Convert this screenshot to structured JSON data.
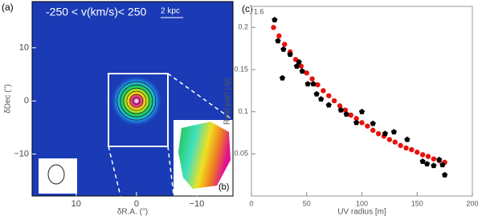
{
  "chart_data": [
    {
      "type": "image",
      "panel_label": "(a)",
      "annotations": [
        "-250 < v(km/s)< 250",
        "2 kpc",
        "(b)"
      ],
      "xlabel": "δR.A. ('')",
      "ylabel": "δDec ('')",
      "xlim": [
        17.3,
        -16
      ],
      "ylim": [
        -17.9,
        18.7
      ],
      "xticks": [
        10,
        0,
        {
          "value": -10,
          "label": "−10"
        }
      ],
      "yticks": [
        {
          "value": -10,
          "label": "−10"
        },
        0,
        10
      ]
    },
    {
      "type": "scatter",
      "panel_label": "(c)",
      "annotations": [
        "1.6"
      ],
      "xlabel": "UV radius [m]",
      "ylabel": "Real part [Jy]",
      "xlim": [
        0,
        200
      ],
      "ylim": [
        0,
        0.225
      ],
      "xticks": [
        0,
        50,
        100,
        150,
        200
      ],
      "yticks": [
        0.05,
        0.1,
        0.15,
        0.2
      ],
      "series": [
        {
          "color": "#e8120c",
          "marker": "circle",
          "x": [
            20,
            25,
            30,
            35,
            40,
            45,
            50,
            55,
            60,
            65,
            70,
            75,
            80,
            85,
            90,
            95,
            100,
            105,
            110,
            115,
            120,
            125,
            130,
            135,
            140,
            145,
            150,
            155,
            160,
            165,
            170,
            175
          ],
          "values": [
            0.2,
            0.19,
            0.18,
            0.171,
            0.162,
            0.154,
            0.146,
            0.139,
            0.132,
            0.125,
            0.119,
            0.113,
            0.107,
            0.102,
            0.096,
            0.092,
            0.087,
            0.083,
            0.078,
            0.074,
            0.071,
            0.067,
            0.064,
            0.06,
            0.057,
            0.055,
            0.052,
            0.049,
            0.047,
            0.044,
            0.042,
            0.04
          ]
        },
        {
          "color": "#000000",
          "marker": "pentagon",
          "x": [
            21,
            24,
            29,
            28,
            35,
            43,
            41,
            46,
            51,
            56,
            59,
            63,
            70,
            81,
            86,
            100,
            95,
            110,
            121,
            129,
            141,
            155,
            159,
            165,
            170,
            175,
            173
          ],
          "values": [
            0.209,
            0.184,
            0.174,
            0.14,
            0.168,
            0.159,
            0.154,
            0.148,
            0.133,
            0.133,
            0.121,
            0.115,
            0.108,
            0.102,
            0.097,
            0.1,
            0.087,
            0.086,
            0.074,
            0.076,
            0.067,
            0.041,
            0.038,
            0.036,
            0.043,
            0.025,
            0.037
          ]
        }
      ]
    }
  ]
}
